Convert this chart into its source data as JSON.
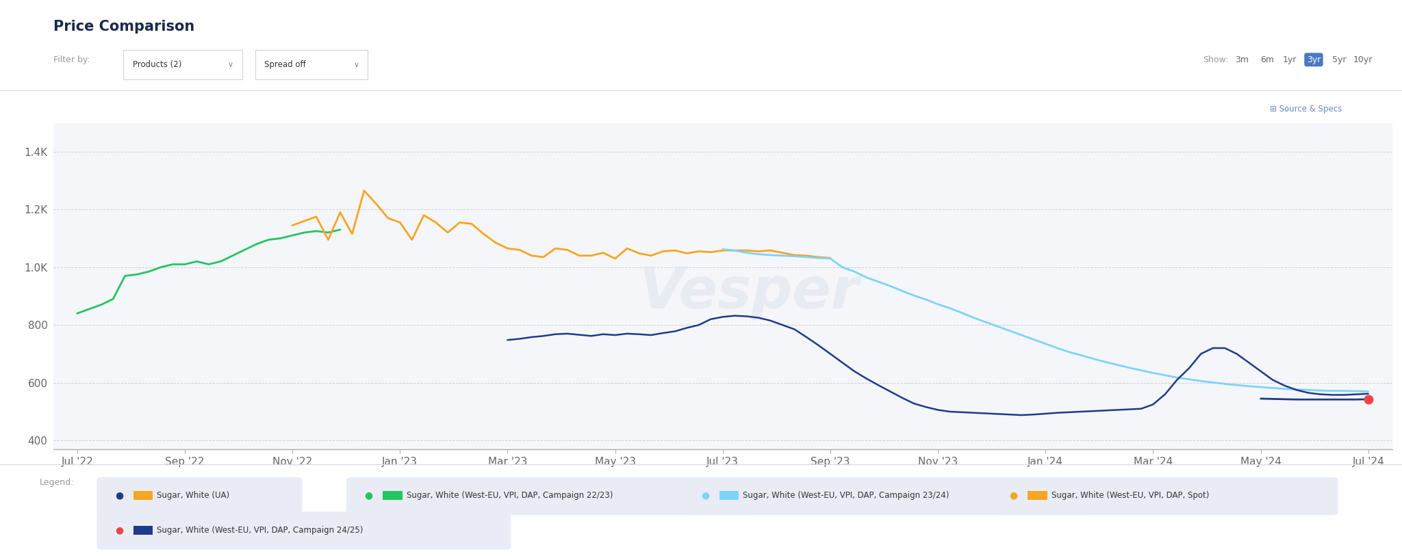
{
  "title": "Price Comparison",
  "filter_label": "Filter by:",
  "filter_products": "Products (2)",
  "filter_spread": "Spread off",
  "show_options": [
    "3m",
    "6m",
    "1yr",
    "3yr",
    "5yr",
    "10yr"
  ],
  "show_active": "3yr",
  "ytick_vals": [
    400,
    600,
    800,
    1000,
    1200,
    1400
  ],
  "ytick_labels": [
    "400",
    "600",
    "800",
    "1.0K",
    "1.2K",
    "1.4K"
  ],
  "ylim": [
    370,
    1500
  ],
  "xlim": [
    -2,
    110
  ],
  "xtick_positions": [
    0,
    9,
    18,
    27,
    36,
    45,
    54,
    63,
    72,
    81,
    90,
    99,
    108
  ],
  "xtick_labels": [
    "Jul '22",
    "Sep '22",
    "Nov '22",
    "Jan '23",
    "Mar '23",
    "May '23",
    "Jul '23",
    "Sep '23",
    "Nov '23",
    "Jan '24",
    "Mar '24",
    "May '24",
    "Jul '24"
  ],
  "bg_color": "#f5f6fa",
  "series": [
    {
      "name": "green_campaign_2223",
      "color": "#22c55e",
      "linewidth": 2.0,
      "points": [
        [
          0,
          840
        ],
        [
          1,
          855
        ],
        [
          2,
          870
        ],
        [
          3,
          890
        ],
        [
          4,
          970
        ],
        [
          5,
          975
        ],
        [
          6,
          985
        ],
        [
          7,
          1000
        ],
        [
          8,
          1010
        ],
        [
          9,
          1010
        ],
        [
          10,
          1020
        ],
        [
          11,
          1010
        ],
        [
          12,
          1020
        ],
        [
          13,
          1040
        ],
        [
          14,
          1060
        ],
        [
          15,
          1080
        ],
        [
          16,
          1095
        ],
        [
          17,
          1100
        ],
        [
          18,
          1110
        ],
        [
          19,
          1120
        ],
        [
          20,
          1125
        ],
        [
          21,
          1120
        ],
        [
          22,
          1130
        ]
      ]
    },
    {
      "name": "orange_spot",
      "color": "#f5a623",
      "linewidth": 2.0,
      "points": [
        [
          18,
          1145
        ],
        [
          19,
          1160
        ],
        [
          20,
          1175
        ],
        [
          21,
          1095
        ],
        [
          22,
          1190
        ],
        [
          23,
          1115
        ],
        [
          24,
          1265
        ],
        [
          25,
          1220
        ],
        [
          26,
          1170
        ],
        [
          27,
          1155
        ],
        [
          28,
          1095
        ],
        [
          29,
          1180
        ],
        [
          30,
          1155
        ],
        [
          31,
          1120
        ],
        [
          32,
          1155
        ],
        [
          33,
          1150
        ],
        [
          34,
          1115
        ],
        [
          35,
          1085
        ],
        [
          36,
          1065
        ],
        [
          37,
          1060
        ],
        [
          38,
          1040
        ],
        [
          39,
          1035
        ],
        [
          40,
          1065
        ],
        [
          41,
          1060
        ],
        [
          42,
          1040
        ],
        [
          43,
          1040
        ],
        [
          44,
          1050
        ],
        [
          45,
          1030
        ],
        [
          46,
          1065
        ],
        [
          47,
          1048
        ],
        [
          48,
          1040
        ],
        [
          49,
          1055
        ],
        [
          50,
          1058
        ],
        [
          51,
          1048
        ],
        [
          52,
          1055
        ],
        [
          53,
          1052
        ],
        [
          54,
          1058
        ],
        [
          55,
          1058
        ],
        [
          56,
          1058
        ],
        [
          57,
          1055
        ],
        [
          58,
          1058
        ],
        [
          59,
          1050
        ],
        [
          60,
          1042
        ],
        [
          61,
          1040
        ],
        [
          62,
          1035
        ],
        [
          63,
          1032
        ]
      ]
    },
    {
      "name": "lightblue_campaign_2324",
      "color": "#7dd3fc",
      "linewidth": 2.0,
      "points": [
        [
          54,
          1062
        ],
        [
          55,
          1058
        ],
        [
          56,
          1050
        ],
        [
          57,
          1045
        ],
        [
          58,
          1042
        ],
        [
          59,
          1040
        ],
        [
          60,
          1038
        ],
        [
          61,
          1035
        ],
        [
          62,
          1032
        ],
        [
          63,
          1030
        ],
        [
          64,
          1000
        ],
        [
          65,
          985
        ],
        [
          66,
          965
        ],
        [
          67,
          950
        ],
        [
          68,
          935
        ],
        [
          69,
          918
        ],
        [
          70,
          902
        ],
        [
          71,
          888
        ],
        [
          72,
          872
        ],
        [
          73,
          858
        ],
        [
          74,
          842
        ],
        [
          75,
          825
        ],
        [
          76,
          810
        ],
        [
          77,
          795
        ],
        [
          78,
          780
        ],
        [
          79,
          765
        ],
        [
          80,
          750
        ],
        [
          81,
          735
        ],
        [
          82,
          720
        ],
        [
          83,
          706
        ],
        [
          84,
          695
        ],
        [
          85,
          683
        ],
        [
          86,
          672
        ],
        [
          87,
          662
        ],
        [
          88,
          652
        ],
        [
          89,
          643
        ],
        [
          90,
          634
        ],
        [
          91,
          626
        ],
        [
          92,
          618
        ],
        [
          93,
          612
        ],
        [
          94,
          606
        ],
        [
          95,
          601
        ],
        [
          96,
          596
        ],
        [
          97,
          592
        ],
        [
          98,
          588
        ],
        [
          99,
          585
        ],
        [
          100,
          582
        ],
        [
          101,
          579
        ],
        [
          102,
          577
        ],
        [
          103,
          575
        ],
        [
          104,
          573
        ],
        [
          105,
          572
        ],
        [
          106,
          572
        ],
        [
          107,
          571
        ],
        [
          108,
          570
        ]
      ]
    },
    {
      "name": "darkblue_UA",
      "color": "#1e3a8a",
      "linewidth": 1.8,
      "points": [
        [
          36,
          748
        ],
        [
          37,
          752
        ],
        [
          38,
          758
        ],
        [
          39,
          762
        ],
        [
          40,
          768
        ],
        [
          41,
          770
        ],
        [
          42,
          766
        ],
        [
          43,
          762
        ],
        [
          44,
          768
        ],
        [
          45,
          765
        ],
        [
          46,
          770
        ],
        [
          47,
          768
        ],
        [
          48,
          765
        ],
        [
          49,
          772
        ],
        [
          50,
          778
        ],
        [
          51,
          790
        ],
        [
          52,
          800
        ],
        [
          53,
          820
        ],
        [
          54,
          828
        ],
        [
          55,
          832
        ],
        [
          56,
          830
        ],
        [
          57,
          825
        ],
        [
          58,
          815
        ],
        [
          59,
          800
        ],
        [
          60,
          785
        ],
        [
          61,
          758
        ],
        [
          62,
          730
        ],
        [
          63,
          700
        ],
        [
          64,
          670
        ],
        [
          65,
          640
        ],
        [
          66,
          615
        ],
        [
          67,
          592
        ],
        [
          68,
          570
        ],
        [
          69,
          548
        ],
        [
          70,
          528
        ],
        [
          71,
          516
        ],
        [
          72,
          506
        ],
        [
          73,
          500
        ],
        [
          74,
          498
        ],
        [
          75,
          496
        ],
        [
          76,
          494
        ],
        [
          77,
          492
        ],
        [
          78,
          490
        ],
        [
          79,
          488
        ],
        [
          80,
          490
        ],
        [
          81,
          493
        ],
        [
          82,
          496
        ],
        [
          83,
          498
        ],
        [
          84,
          500
        ],
        [
          85,
          502
        ],
        [
          86,
          504
        ],
        [
          87,
          506
        ],
        [
          88,
          508
        ],
        [
          89,
          510
        ],
        [
          90,
          525
        ],
        [
          91,
          560
        ],
        [
          92,
          610
        ],
        [
          93,
          650
        ],
        [
          94,
          700
        ],
        [
          95,
          720
        ],
        [
          96,
          720
        ],
        [
          97,
          700
        ],
        [
          98,
          670
        ],
        [
          99,
          640
        ],
        [
          100,
          610
        ],
        [
          101,
          590
        ],
        [
          102,
          575
        ],
        [
          103,
          565
        ],
        [
          104,
          560
        ],
        [
          105,
          558
        ],
        [
          106,
          558
        ],
        [
          107,
          560
        ],
        [
          108,
          562
        ]
      ]
    },
    {
      "name": "red_campaign_2425",
      "color": "#1e3a8a",
      "dot_color": "#ef4444",
      "linewidth": 2.0,
      "points": [
        [
          99,
          545
        ],
        [
          100,
          544
        ],
        [
          101,
          543
        ],
        [
          102,
          542
        ],
        [
          103,
          542
        ],
        [
          104,
          542
        ],
        [
          105,
          542
        ],
        [
          106,
          542
        ],
        [
          107,
          542
        ],
        [
          108,
          543
        ]
      ]
    }
  ],
  "legend_items": [
    {
      "dot": "#1e3a8a",
      "line": "#f5a623",
      "label": "Sugar, White (UA)"
    },
    {
      "dot": "#22c55e",
      "line": "#22c55e",
      "label": "Sugar, White (West-EU, VPI, DAP, Campaign 22/23)"
    },
    {
      "dot": "#7dd3fc",
      "line": "#7dd3fc",
      "label": "Sugar, White (West-EU, VPI, DAP, Campaign 23/24)"
    },
    {
      "dot": "#f5a623",
      "line": "#f5a623",
      "label": "Sugar, White (West-EU, VPI, DAP, Spot)"
    },
    {
      "dot": "#ef4444",
      "line": "#1e3a8a",
      "label": "Sugar, White (West-EU, VPI, DAP, Campaign 24/25)"
    }
  ]
}
